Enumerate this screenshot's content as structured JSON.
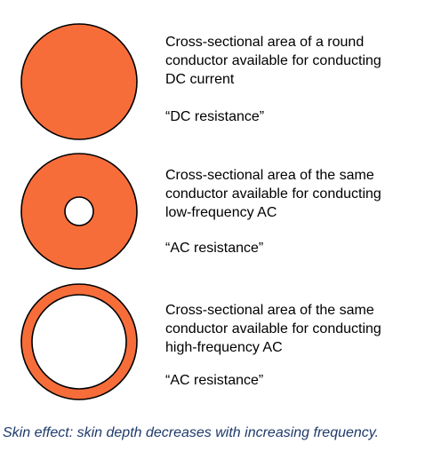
{
  "colors": {
    "conductor_fill": "#f76d3a",
    "outline": "#000000",
    "caption": "#1f3a6b"
  },
  "rows": [
    {
      "description": "Cross-sectional area of a round\nconductor available for conducting\nDC current",
      "label": "“DC resistance”"
    },
    {
      "description": "Cross-sectional area of the same\nconductor available for conducting\nlow-frequency AC",
      "label": "“AC resistance”"
    },
    {
      "description": "Cross-sectional area of the same\nconductor available for conducting\nhigh-frequency AC",
      "label": "“AC resistance”"
    }
  ],
  "caption": "Skin effect: skin depth decreases with increasing frequency."
}
